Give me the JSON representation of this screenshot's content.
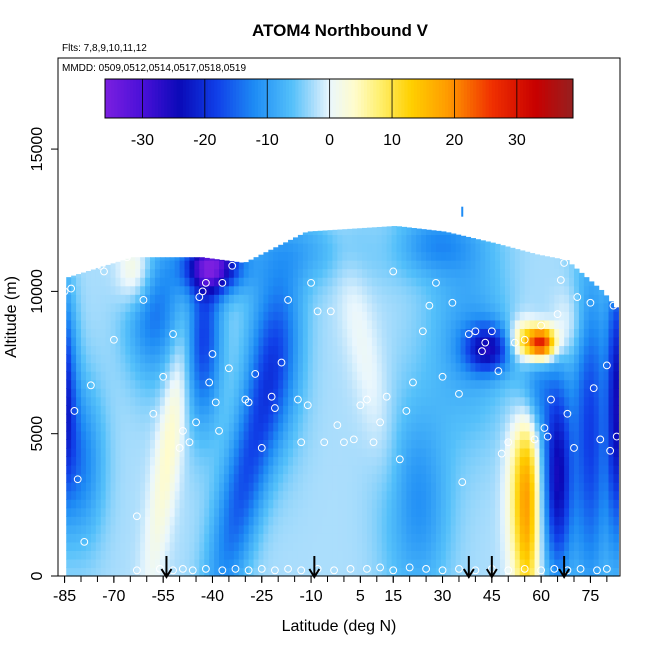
{
  "chart_data": {
    "type": "heatmap",
    "title": "ATOM4 Northbound V",
    "subtitle_flights": "Flts: 7,8,9,10,11,12",
    "subtitle_dates": "MMDD: 0509,0512,0514,0517,0518,0519",
    "xlabel": "Latitude (deg N)",
    "ylabel": "Altitude (m)",
    "xlim": [
      -87,
      84
    ],
    "ylim": [
      0,
      18200
    ],
    "x_ticks": [
      -85,
      -70,
      -55,
      -40,
      -25,
      -10,
      5,
      15,
      30,
      45,
      60,
      75
    ],
    "x_tick_labels": [
      "-85",
      "-70",
      "-55",
      "-40",
      "-25",
      "-10",
      "5",
      "15",
      "30",
      "45",
      "60",
      "75"
    ],
    "x_minor_step": 5,
    "y_ticks": [
      0,
      5000,
      10000,
      15000
    ],
    "y_tick_labels": [
      "0",
      "5000",
      "10000",
      "15000"
    ],
    "colorbar": {
      "ticks": [
        -30,
        -20,
        -10,
        0,
        10,
        20,
        30
      ],
      "tick_labels": [
        "-30",
        "-20",
        "-10",
        "0",
        "10",
        "20",
        "30"
      ],
      "range": [
        -36,
        39
      ],
      "stops": [
        {
          "v": -36,
          "c": "#7b1fe0"
        },
        {
          "v": -30,
          "c": "#4a10d8"
        },
        {
          "v": -24,
          "c": "#0a0ab8"
        },
        {
          "v": -18,
          "c": "#1040e8"
        },
        {
          "v": -12,
          "c": "#1e8cf5"
        },
        {
          "v": -6,
          "c": "#54c0fa"
        },
        {
          "v": -2,
          "c": "#b8e2fc"
        },
        {
          "v": 0,
          "c": "#eaf7fd"
        },
        {
          "v": 4,
          "c": "#fffccc"
        },
        {
          "v": 8,
          "c": "#fff070"
        },
        {
          "v": 13,
          "c": "#ffd000"
        },
        {
          "v": 19,
          "c": "#ff9a00"
        },
        {
          "v": 26,
          "c": "#f03000"
        },
        {
          "v": 33,
          "c": "#c80000"
        },
        {
          "v": 39,
          "c": "#962020"
        }
      ]
    },
    "profile_arrows_latitude": [
      -54,
      -9,
      38,
      45,
      67
    ],
    "aircraft_profiles": [
      {
        "lat": -84.5,
        "top": 10500
      },
      {
        "lat": -65,
        "top": 11200
      },
      {
        "lat": -44,
        "top": 11200
      },
      {
        "lat": -31,
        "top": 11000
      },
      {
        "lat": -12,
        "top": 12100
      },
      {
        "lat": 15,
        "top": 12300
      },
      {
        "lat": 30,
        "top": 12100
      },
      {
        "lat": 45,
        "top": 11700
      },
      {
        "lat": 58,
        "top": 11300
      },
      {
        "lat": 67,
        "top": 11100
      },
      {
        "lat": 78,
        "top": 10000
      },
      {
        "lat": 83,
        "top": 9300
      }
    ],
    "isolated_measurement": {
      "lat": 36,
      "alt": 12800,
      "v": -12
    },
    "wind_features": [
      {
        "lat": -40,
        "alt": 10900,
        "sx": 6,
        "sy": 650,
        "v": -28,
        "tilt": 0
      },
      {
        "lat": -43,
        "alt": 8500,
        "sx": 4,
        "sy": 2200,
        "v": -16,
        "tilt": 0
      },
      {
        "lat": -52,
        "alt": 5500,
        "sx": 3,
        "sy": 4200,
        "v": 7,
        "tilt": 0.0012
      },
      {
        "lat": -58,
        "alt": 9500,
        "sx": 6,
        "sy": 1800,
        "v": -12,
        "tilt": 0
      },
      {
        "lat": -63,
        "alt": 10700,
        "sx": 4,
        "sy": 900,
        "v": 10,
        "tilt": 0
      },
      {
        "lat": -86,
        "alt": 6500,
        "sx": 3,
        "sy": 2500,
        "v": -20,
        "tilt": 0
      },
      {
        "lat": -80,
        "alt": 4000,
        "sx": 5,
        "sy": 2000,
        "v": -10,
        "tilt": 0
      },
      {
        "lat": -30,
        "alt": 3500,
        "sx": 5,
        "sy": 3500,
        "v": -14,
        "tilt": 0.0018
      },
      {
        "lat": -21,
        "alt": 8000,
        "sx": 6,
        "sy": 2500,
        "v": -10,
        "tilt": 0
      },
      {
        "lat": -9,
        "alt": 11500,
        "sx": 14,
        "sy": 900,
        "v": -5,
        "tilt": 0
      },
      {
        "lat": 6,
        "alt": 8000,
        "sx": 4,
        "sy": 4000,
        "v": 3,
        "tilt": -0.0018
      },
      {
        "lat": 15,
        "alt": 11700,
        "sx": 8,
        "sy": 700,
        "v": 3,
        "tilt": 0
      },
      {
        "lat": 26,
        "alt": 11700,
        "sx": 10,
        "sy": 800,
        "v": -9,
        "tilt": 0
      },
      {
        "lat": 22,
        "alt": 2500,
        "sx": 7,
        "sy": 2500,
        "v": -9,
        "tilt": 0
      },
      {
        "lat": 44,
        "alt": 8000,
        "sx": 5,
        "sy": 600,
        "v": -18,
        "tilt": 0
      },
      {
        "lat": 38,
        "alt": 8500,
        "sx": 9,
        "sy": 2500,
        "v": -7,
        "tilt": 0
      },
      {
        "lat": 56,
        "alt": 2500,
        "sx": 2.5,
        "sy": 2800,
        "v": 16,
        "tilt": 0
      },
      {
        "lat": 53,
        "alt": 3000,
        "sx": 3,
        "sy": 2600,
        "v": 8,
        "tilt": 0
      },
      {
        "lat": 60,
        "alt": 8200,
        "sx": 3,
        "sy": 400,
        "v": 33,
        "tilt": 0
      },
      {
        "lat": 54,
        "alt": 8300,
        "sx": 3,
        "sy": 500,
        "v": 12,
        "tilt": 0
      },
      {
        "lat": 57,
        "alt": 6500,
        "sx": 4,
        "sy": 1200,
        "v": -12,
        "tilt": 0
      },
      {
        "lat": 68,
        "alt": 8800,
        "sx": 4,
        "sy": 900,
        "v": 5,
        "tilt": 0
      },
      {
        "lat": 65,
        "alt": 3500,
        "sx": 3,
        "sy": 2500,
        "v": -22,
        "tilt": 0
      },
      {
        "lat": 75,
        "alt": 5000,
        "sx": 4,
        "sy": 4000,
        "v": -16,
        "tilt": 0
      },
      {
        "lat": 83,
        "alt": 6000,
        "sx": 2,
        "sy": 3500,
        "v": -20,
        "tilt": 0
      }
    ],
    "measurement_points": [
      [
        -86,
        7000
      ],
      [
        -85,
        10000
      ],
      [
        -83,
        10100
      ],
      [
        -82,
        5800
      ],
      [
        -81,
        3400
      ],
      [
        -79,
        1200
      ],
      [
        -77,
        6700
      ],
      [
        -74,
        10900
      ],
      [
        -73,
        10700
      ],
      [
        -70,
        8300
      ],
      [
        -66,
        11200
      ],
      [
        -63,
        2100
      ],
      [
        -61,
        9700
      ],
      [
        -58,
        5700
      ],
      [
        -55,
        7000
      ],
      [
        -52,
        8500
      ],
      [
        -50,
        4500
      ],
      [
        -49,
        5100
      ],
      [
        -47,
        4700
      ],
      [
        -45,
        5400
      ],
      [
        -44,
        9800
      ],
      [
        -43,
        10000
      ],
      [
        -42,
        10300
      ],
      [
        -41,
        6800
      ],
      [
        -40,
        7800
      ],
      [
        -39,
        6100
      ],
      [
        -38,
        5100
      ],
      [
        -37,
        10300
      ],
      [
        -35,
        7300
      ],
      [
        -34,
        10900
      ],
      [
        -30,
        6200
      ],
      [
        -29,
        6100
      ],
      [
        -27,
        7100
      ],
      [
        -25,
        4500
      ],
      [
        -22,
        6300
      ],
      [
        -21,
        5900
      ],
      [
        -19,
        7500
      ],
      [
        -17,
        9700
      ],
      [
        -14,
        6200
      ],
      [
        -13,
        4700
      ],
      [
        -11,
        6000
      ],
      [
        -10,
        10300
      ],
      [
        -8,
        9300
      ],
      [
        -6,
        4700
      ],
      [
        -4,
        9300
      ],
      [
        -2,
        5300
      ],
      [
        0,
        4700
      ],
      [
        3,
        4800
      ],
      [
        5,
        6000
      ],
      [
        7,
        6200
      ],
      [
        9,
        4700
      ],
      [
        11,
        5400
      ],
      [
        13,
        6300
      ],
      [
        15,
        10700
      ],
      [
        17,
        4100
      ],
      [
        19,
        5800
      ],
      [
        21,
        6800
      ],
      [
        24,
        8600
      ],
      [
        26,
        9500
      ],
      [
        28,
        10300
      ],
      [
        30,
        7000
      ],
      [
        33,
        9600
      ],
      [
        35,
        6400
      ],
      [
        36,
        3300
      ],
      [
        38,
        8500
      ],
      [
        40,
        8600
      ],
      [
        42,
        7900
      ],
      [
        43,
        8200
      ],
      [
        45,
        8600
      ],
      [
        47,
        7200
      ],
      [
        48,
        4300
      ],
      [
        50,
        4700
      ],
      [
        52,
        8200
      ],
      [
        55,
        8300
      ],
      [
        58,
        4800
      ],
      [
        60,
        8800
      ],
      [
        61,
        5200
      ],
      [
        62,
        4900
      ],
      [
        63,
        6200
      ],
      [
        65,
        9200
      ],
      [
        66,
        10400
      ],
      [
        67,
        11000
      ],
      [
        68,
        5700
      ],
      [
        70,
        4500
      ],
      [
        71,
        9800
      ],
      [
        73,
        11200
      ],
      [
        75,
        9600
      ],
      [
        76,
        6600
      ],
      [
        77,
        10500
      ],
      [
        78,
        4800
      ],
      [
        80,
        7400
      ],
      [
        81,
        4400
      ],
      [
        82,
        9500
      ],
      [
        83,
        4900
      ],
      [
        -63,
        200
      ],
      [
        -56,
        250
      ],
      [
        -52,
        200
      ],
      [
        -49,
        250
      ],
      [
        -46,
        200
      ],
      [
        -42,
        250
      ],
      [
        -37,
        200
      ],
      [
        -33,
        250
      ],
      [
        -29,
        200
      ],
      [
        -25,
        250
      ],
      [
        -21,
        200
      ],
      [
        -17,
        250
      ],
      [
        -13,
        200
      ],
      [
        -8,
        250
      ],
      [
        -3,
        200
      ],
      [
        2,
        250
      ],
      [
        7,
        250
      ],
      [
        11,
        300
      ],
      [
        15,
        200
      ],
      [
        20,
        300
      ],
      [
        25,
        250
      ],
      [
        30,
        200
      ],
      [
        35,
        250
      ],
      [
        40,
        200
      ],
      [
        45,
        250
      ],
      [
        50,
        200
      ],
      [
        55,
        250
      ],
      [
        60,
        200
      ],
      [
        64,
        250
      ],
      [
        68,
        200
      ],
      [
        72,
        250
      ],
      [
        77,
        200
      ],
      [
        80,
        250
      ]
    ]
  }
}
